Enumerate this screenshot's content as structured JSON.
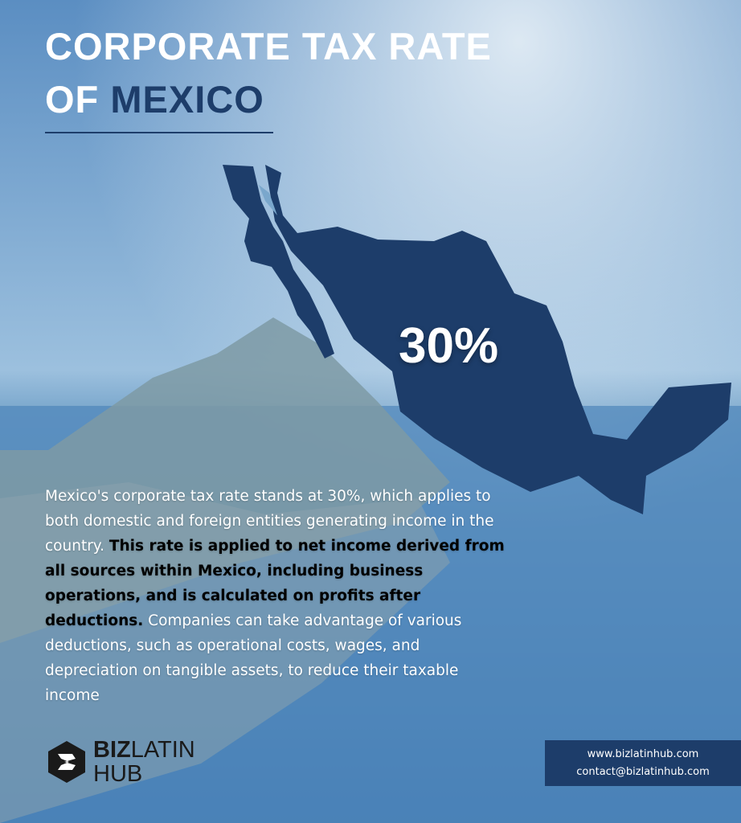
{
  "header": {
    "title_line1": "CORPORATE TAX RATE",
    "title_line2_prefix": "OF",
    "title_line2_highlight": "MEXICO"
  },
  "map": {
    "label": "30%"
  },
  "paragraph": {
    "intro": "Mexico's corporate tax rate stands at 30%, which applies to both domestic and foreign entities generating income in the country.",
    "bold": "This rate is applied to net income derived from all sources within Mexico, including business operations, and is calculated on profits after deductions.",
    "outro": "Companies can take advantage of various deductions, such as operational costs, wages, and depreciation on tangible assets, to reduce their taxable income"
  },
  "logo": {
    "part1": "BIZ",
    "part2": "LATIN",
    "part3": "HUB"
  },
  "contact": {
    "website": "www.bizlatinhub.com",
    "email": "contact@bizlatinhub.com"
  }
}
